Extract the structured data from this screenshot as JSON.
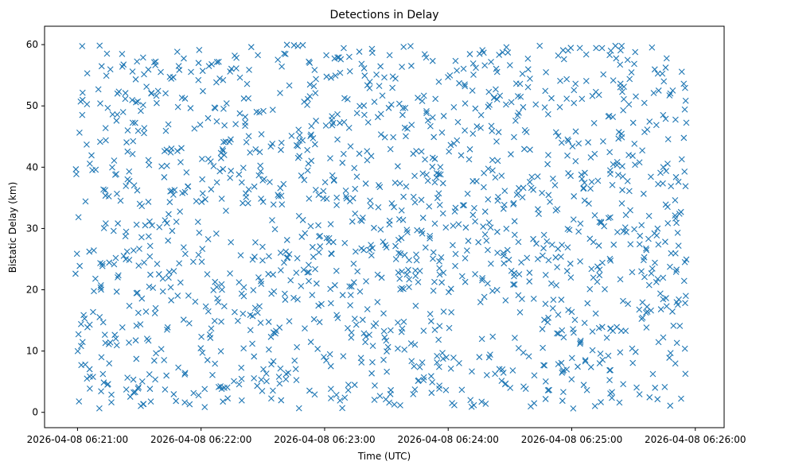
{
  "chart_data": {
    "type": "scatter",
    "title": "Detections in Delay",
    "xlabel": "Time (UTC)",
    "ylabel": "Bistatic Delay (km)",
    "marker": "x",
    "color": "#1f77b4",
    "grid": false,
    "xlim_seconds": [
      -16,
      314
    ],
    "x_start_label": "2026-04-08 06:21:00",
    "ylim": [
      -2.5,
      63
    ],
    "xticks": [
      {
        "value": 0,
        "label": "2026-04-08 06:21:00"
      },
      {
        "value": 60,
        "label": "2026-04-08 06:22:00"
      },
      {
        "value": 120,
        "label": "2026-04-08 06:23:00"
      },
      {
        "value": 180,
        "label": "2026-04-08 06:24:00"
      },
      {
        "value": 240,
        "label": "2026-04-08 06:25:00"
      },
      {
        "value": 300,
        "label": "2026-04-08 06:26:00"
      }
    ],
    "yticks": [
      0,
      10,
      20,
      30,
      40,
      50,
      60
    ],
    "points_note": "approximately 1500 detections spread uniformly over t = -1 to 296 s and delay 1 to 60 km; generated deterministically",
    "point_count": 1500,
    "point_t_range": [
      -1,
      296
    ],
    "point_y_range": [
      0.6,
      60
    ]
  }
}
